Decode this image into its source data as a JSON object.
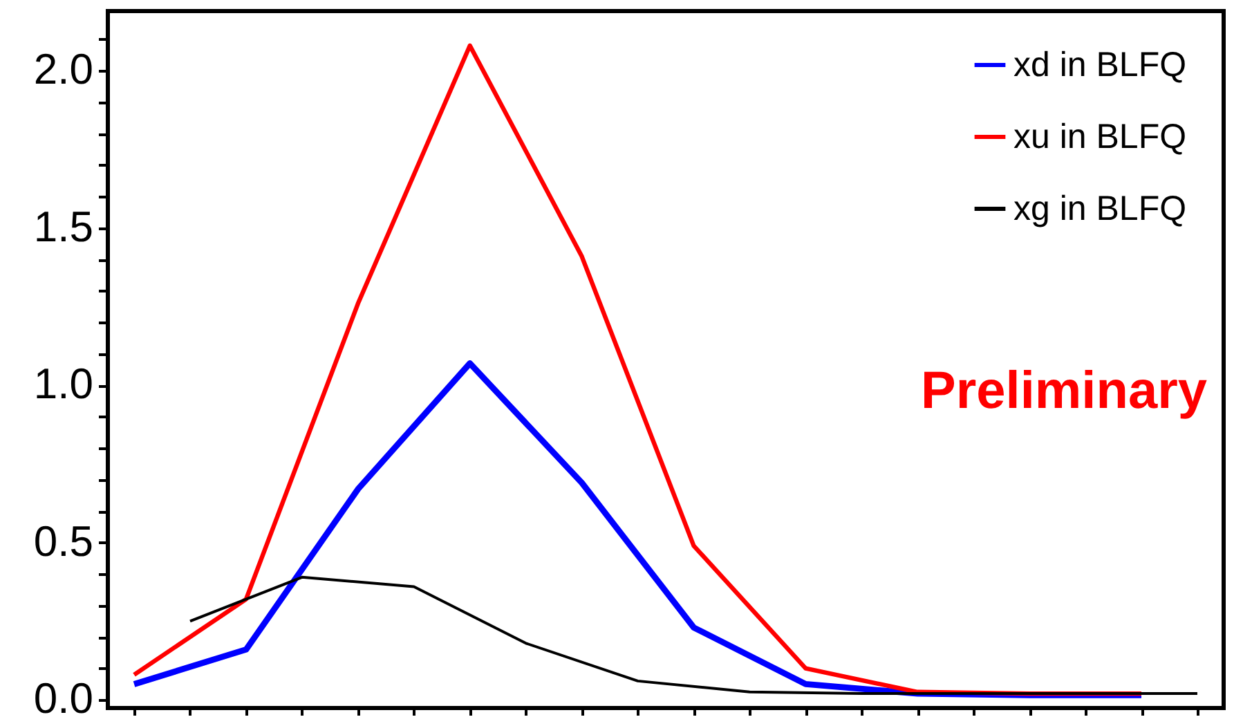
{
  "chart_data": {
    "type": "line",
    "categories": [
      null,
      null,
      null,
      null,
      null,
      null,
      null,
      null,
      null,
      null,
      null,
      null,
      null,
      null,
      null,
      null,
      null,
      null,
      null,
      null
    ],
    "series": [
      {
        "name": "xd in BLFQ",
        "color": "#0000ff",
        "values": [
          0.05,
          null,
          0.16,
          null,
          0.67,
          null,
          1.07,
          null,
          0.69,
          null,
          0.23,
          null,
          0.05,
          null,
          0.02,
          null,
          0.015,
          null,
          0.015,
          null
        ]
      },
      {
        "name": "xu in BLFQ",
        "color": "#ff0000",
        "values": [
          0.08,
          null,
          0.32,
          null,
          1.26,
          null,
          2.08,
          null,
          1.41,
          null,
          0.49,
          null,
          0.1,
          null,
          0.025,
          null,
          0.02,
          null,
          0.02,
          null
        ]
      },
      {
        "name": "xg in BLFQ",
        "color": "#000000",
        "values": [
          null,
          0.25,
          null,
          0.39,
          null,
          0.36,
          null,
          0.18,
          null,
          0.06,
          null,
          0.025,
          null,
          0.02,
          null,
          0.02,
          null,
          0.02,
          null,
          0.02
        ]
      }
    ],
    "ylim": [
      -0.026,
      2.19
    ],
    "yticks": [
      {
        "value": 0,
        "label": "0.0"
      },
      {
        "value": 0.1,
        "label": null
      },
      {
        "value": 0.2,
        "label": null
      },
      {
        "value": 0.3,
        "label": null
      },
      {
        "value": 0.4,
        "label": null
      },
      "0.5",
      {
        "value": 0.6,
        "label": null
      },
      {
        "value": 0.7,
        "label": null
      },
      {
        "value": 0.8,
        "label": null
      },
      {
        "value": 0.9,
        "label": null
      },
      {
        "value": 1,
        "label": "1.0"
      },
      {
        "value": 1.1,
        "label": null
      },
      {
        "value": 1.2,
        "label": null
      },
      {
        "value": 1.3,
        "label": null
      },
      {
        "value": 1.4,
        "label": null
      },
      1.5,
      {
        "value": 1.6,
        "label": null
      },
      {
        "value": 1.7,
        "label": null
      },
      {
        "value": 1.8,
        "label": null
      },
      {
        "value": 1.9,
        "label": null
      },
      {
        "value": 2,
        "label": "2.0"
      },
      {
        "value": 2.1,
        "label": null
      }
    ],
    "tick_labels": "y",
    "legend": "top right",
    "grid": false,
    "annotations": [
      "Preliminary"
    ]
  }
}
